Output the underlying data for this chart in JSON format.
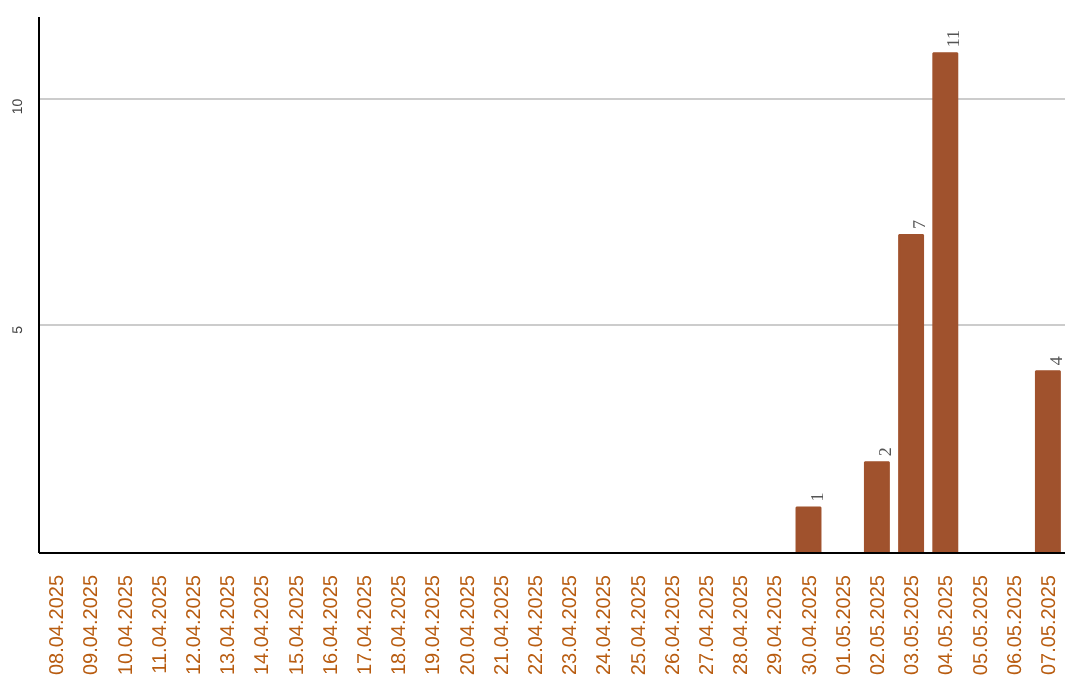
{
  "chart_data": {
    "type": "bar",
    "categories": [
      "08.04.2025",
      "09.04.2025",
      "10.04.2025",
      "11.04.2025",
      "12.04.2025",
      "13.04.2025",
      "14.04.2025",
      "15.04.2025",
      "16.04.2025",
      "17.04.2025",
      "18.04.2025",
      "19.04.2025",
      "20.04.2025",
      "21.04.2025",
      "22.04.2025",
      "23.04.2025",
      "24.04.2025",
      "25.04.2025",
      "26.04.2025",
      "27.04.2025",
      "28.04.2025",
      "29.04.2025",
      "30.04.2025",
      "01.05.2025",
      "02.05.2025",
      "03.05.2025",
      "04.05.2025",
      "05.05.2025",
      "06.05.2025",
      "07.05.2025"
    ],
    "values": [
      0,
      0,
      0,
      0,
      0,
      0,
      0,
      0,
      0,
      0,
      0,
      0,
      0,
      0,
      0,
      0,
      0,
      0,
      0,
      0,
      0,
      0,
      1,
      0,
      2,
      7,
      11,
      0,
      0,
      4
    ],
    "value_labels": [
      null,
      null,
      null,
      null,
      null,
      null,
      null,
      null,
      null,
      null,
      null,
      null,
      null,
      null,
      null,
      null,
      null,
      null,
      null,
      null,
      null,
      null,
      "1",
      null,
      "2",
      "7",
      "11",
      null,
      null,
      "4"
    ],
    "color": "#a0522d",
    "ylim": [
      0,
      11.8
    ],
    "yticks": [
      5,
      10
    ],
    "grid": "y"
  }
}
